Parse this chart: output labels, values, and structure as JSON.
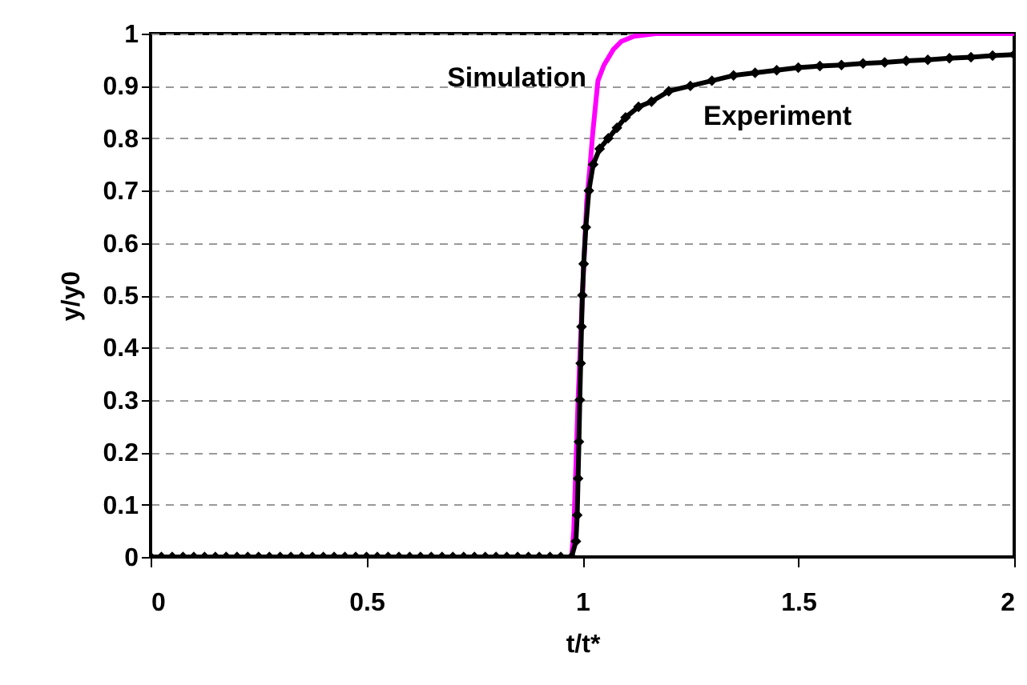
{
  "chart_data": {
    "type": "line",
    "xlabel": "t/t*",
    "ylabel": "y/y0",
    "xlim": [
      0,
      2
    ],
    "ylim": [
      0,
      1
    ],
    "xticks": [
      0,
      0.5,
      1,
      1.5,
      2
    ],
    "yticks": [
      0,
      0.1,
      0.2,
      0.3,
      0.4,
      0.5,
      0.6,
      0.7,
      0.8,
      0.9,
      1
    ],
    "grid": "y",
    "series": [
      {
        "name": "Simulation",
        "color": "#ff00ff",
        "marker": "none",
        "x": [
          0,
          0.5,
          0.975,
          0.98,
          0.99,
          1.0,
          1.01,
          1.018,
          1.024,
          1.03,
          1.036,
          1.05,
          1.072,
          1.09,
          1.12,
          1.17,
          1.5,
          2.0
        ],
        "values": [
          0,
          0,
          0,
          0.05,
          0.3,
          0.5,
          0.68,
          0.75,
          0.81,
          0.86,
          0.91,
          0.94,
          0.97,
          0.985,
          0.995,
          1.0,
          1.0,
          1.0
        ]
      },
      {
        "name": "Experiment",
        "color": "#000000",
        "marker": "diamond",
        "x": [
          0,
          0.025,
          0.05,
          0.075,
          0.1,
          0.125,
          0.15,
          0.175,
          0.2,
          0.225,
          0.25,
          0.275,
          0.3,
          0.325,
          0.35,
          0.375,
          0.4,
          0.425,
          0.45,
          0.475,
          0.5,
          0.525,
          0.55,
          0.575,
          0.6,
          0.625,
          0.65,
          0.675,
          0.7,
          0.725,
          0.75,
          0.775,
          0.8,
          0.825,
          0.85,
          0.875,
          0.9,
          0.925,
          0.95,
          0.975,
          0.985,
          0.988,
          0.99,
          0.992,
          0.994,
          0.996,
          0.998,
          1.0,
          1.003,
          1.008,
          1.015,
          1.025,
          1.04,
          1.06,
          1.08,
          1.1,
          1.13,
          1.16,
          1.2,
          1.25,
          1.3,
          1.35,
          1.4,
          1.45,
          1.5,
          1.55,
          1.6,
          1.65,
          1.7,
          1.75,
          1.8,
          1.85,
          1.9,
          1.95,
          2.0
        ],
        "values": [
          0,
          0,
          0,
          0,
          0,
          0,
          0,
          0,
          0,
          0,
          0,
          0,
          0,
          0,
          0,
          0,
          0,
          0,
          0,
          0,
          0,
          0,
          0,
          0,
          0,
          0,
          0,
          0,
          0,
          0,
          0,
          0,
          0,
          0,
          0,
          0,
          0,
          0,
          0,
          0,
          0.03,
          0.08,
          0.15,
          0.22,
          0.3,
          0.37,
          0.44,
          0.5,
          0.56,
          0.63,
          0.7,
          0.75,
          0.78,
          0.8,
          0.82,
          0.84,
          0.86,
          0.87,
          0.89,
          0.9,
          0.91,
          0.92,
          0.925,
          0.93,
          0.935,
          0.938,
          0.94,
          0.943,
          0.945,
          0.948,
          0.95,
          0.953,
          0.955,
          0.958,
          0.96
        ]
      }
    ]
  }
}
